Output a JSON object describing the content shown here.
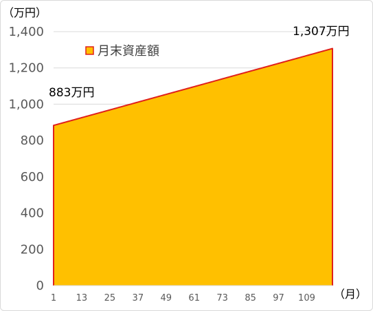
{
  "chart_data": {
    "type": "area",
    "title": "",
    "y_unit_label": "（万円）",
    "x_unit_label": "（月）",
    "ylim": [
      0,
      1400
    ],
    "y_ticks": [
      0,
      200,
      400,
      600,
      800,
      1000,
      1200,
      1400
    ],
    "y_tick_labels": [
      "0",
      "200",
      "400",
      "600",
      "800",
      "1,000",
      "1,200",
      "1,400"
    ],
    "xlim": [
      1,
      120
    ],
    "x_ticks": [
      1,
      13,
      25,
      37,
      49,
      61,
      73,
      85,
      97,
      109
    ],
    "x_tick_labels": [
      "1",
      "13",
      "25",
      "37",
      "49",
      "61",
      "73",
      "85",
      "97",
      "109"
    ],
    "grid": "horizontal",
    "legend_position": "top-left",
    "series": [
      {
        "name": "月末資産額",
        "color": "#FFC000",
        "line_color": "#E0201B",
        "start_month": 1,
        "end_month": 120,
        "start_value": 883,
        "end_value": 1307
      }
    ],
    "annotations": [
      {
        "text": "883万円",
        "month": 1,
        "value": 883
      },
      {
        "text": "1,307万円",
        "month": 120,
        "value": 1307
      }
    ]
  }
}
